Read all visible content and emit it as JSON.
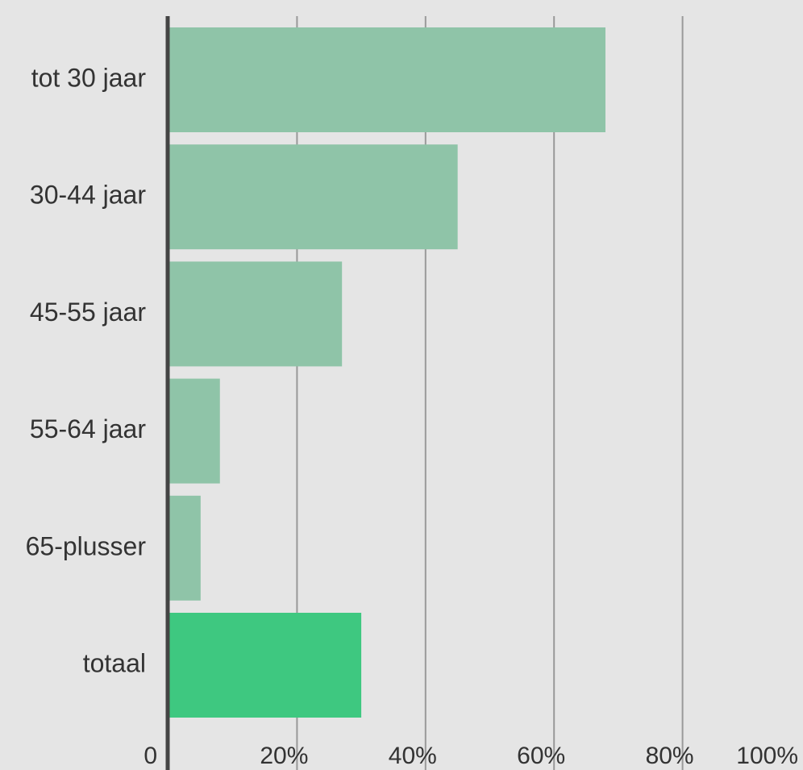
{
  "chart_data": {
    "type": "bar",
    "orientation": "horizontal",
    "categories": [
      "tot 30 jaar",
      "30-44 jaar",
      "45-55 jaar",
      "55-64 jaar",
      "65-plusser",
      "totaal"
    ],
    "values": [
      68,
      45,
      27,
      8,
      5,
      30
    ],
    "xlim": [
      0,
      100
    ],
    "x_ticks": [
      0,
      20,
      40,
      60,
      80,
      100
    ],
    "x_tick_labels": [
      "0",
      "20%",
      "40%",
      "60%",
      "80%",
      "100%"
    ],
    "grid": "vertical",
    "colors": {
      "background": "#e5e5e5",
      "bar": "#8fc4a8",
      "highlight_bar": "#3ec880",
      "grid": "#999999",
      "axis": "#444444",
      "text": "#333333"
    },
    "highlight_category": "totaal"
  }
}
